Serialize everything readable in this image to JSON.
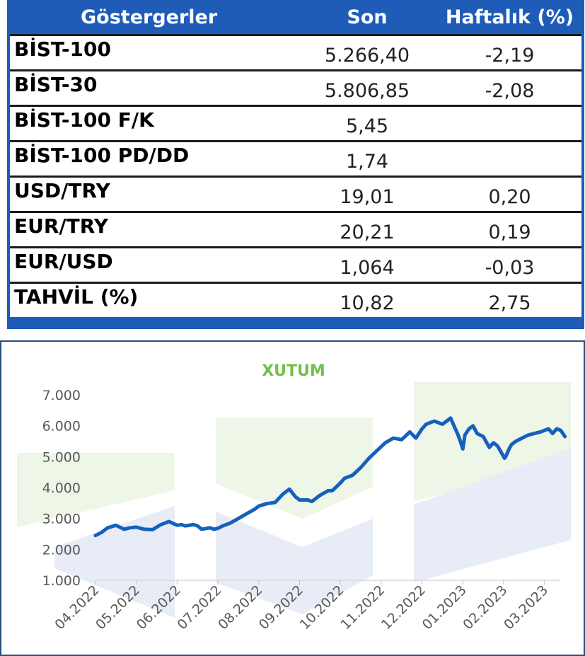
{
  "table": {
    "headers": [
      "Göstergerler",
      "Son",
      "Haftalık (%)"
    ],
    "rows": [
      {
        "name": "BİST-100",
        "son": "5.266,40",
        "haftalik": "-2,19"
      },
      {
        "name": "BİST-30",
        "son": "5.806,85",
        "haftalik": "-2,08"
      },
      {
        "name": "BİST-100 F/K",
        "son": "5,45",
        "haftalik": ""
      },
      {
        "name": "BİST-100 PD/DD",
        "son": "1,74",
        "haftalik": ""
      },
      {
        "name": "USD/TRY",
        "son": "19,01",
        "haftalik": "0,20"
      },
      {
        "name": "EUR/TRY",
        "son": "20,21",
        "haftalik": "0,19"
      },
      {
        "name": "EUR/USD",
        "son": "1,064",
        "haftalik": "-0,03"
      },
      {
        "name": "TAHVİL (%)",
        "son": "10,82",
        "haftalik": "2,75"
      }
    ]
  },
  "chart_data": {
    "type": "line",
    "title": "XUTUM",
    "xlabel": "",
    "ylabel": "",
    "ylim": [
      1000,
      7000
    ],
    "yticks": [
      "1.000",
      "2.000",
      "3.000",
      "4.000",
      "5.000",
      "6.000",
      "7.000"
    ],
    "xticks": [
      "04.2022",
      "05.2022",
      "06.2022",
      "07.2022",
      "08.2022",
      "09.2022",
      "10.2022",
      "11.2022",
      "12.2022",
      "01.2023",
      "02.2023",
      "03.2023"
    ],
    "line_color": "#1560bd",
    "series": [
      {
        "x": [
          0,
          0.15,
          0.3,
          0.5,
          0.7,
          0.85,
          1.0,
          1.2,
          1.4,
          1.6,
          1.8,
          2.0,
          2.1,
          2.2,
          2.4,
          2.5,
          2.6,
          2.8,
          2.9,
          3.0,
          3.1,
          3.3,
          3.5,
          3.7,
          3.9,
          4.0,
          4.2,
          4.4,
          4.6,
          4.75,
          4.9,
          5.0,
          5.2,
          5.3,
          5.5,
          5.7,
          5.8,
          6.0,
          6.1,
          6.3,
          6.5,
          6.7,
          6.9,
          7.1,
          7.3,
          7.5,
          7.7,
          7.85,
          8.0,
          8.1,
          8.3,
          8.5,
          8.7,
          8.9,
          9.0,
          9.05,
          9.15,
          9.25,
          9.35,
          9.5,
          9.65,
          9.75,
          9.85,
          10.0,
          10.02,
          10.05,
          10.1,
          10.15,
          10.2,
          10.3,
          10.45,
          10.6,
          10.75,
          10.9,
          11.0,
          11.1,
          11.2,
          11.3,
          11.4,
          11.5
        ],
        "values": [
          2450,
          2550,
          2700,
          2780,
          2650,
          2700,
          2720,
          2650,
          2640,
          2800,
          2900,
          2780,
          2800,
          2760,
          2800,
          2760,
          2650,
          2700,
          2650,
          2680,
          2750,
          2850,
          3000,
          3150,
          3300,
          3400,
          3480,
          3520,
          3800,
          3950,
          3700,
          3600,
          3600,
          3550,
          3750,
          3900,
          3900,
          4150,
          4300,
          4400,
          4650,
          4950,
          5200,
          5450,
          5600,
          5550,
          5800,
          5600,
          5900,
          6050,
          6150,
          6050,
          6250,
          5650,
          5250,
          5700,
          5900,
          6000,
          5750,
          5650,
          5300,
          5450,
          5350,
          5000,
          4950,
          5000,
          5150,
          5300,
          5400,
          5500,
          5600,
          5700,
          5750,
          5800,
          5850,
          5900,
          5750,
          5900,
          5850,
          5650
        ]
      }
    ],
    "grid": false,
    "legend": "none"
  }
}
